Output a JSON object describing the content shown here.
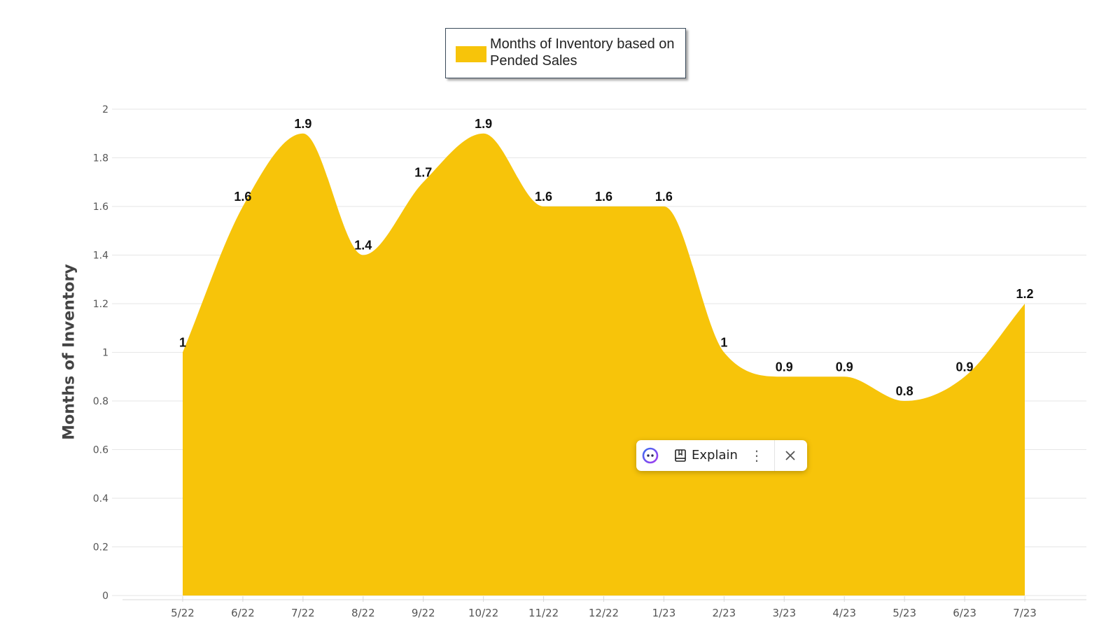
{
  "chart_data": {
    "type": "area",
    "categories": [
      "5/22",
      "6/22",
      "7/22",
      "8/22",
      "9/22",
      "10/22",
      "11/22",
      "12/22",
      "1/23",
      "2/23",
      "3/23",
      "4/23",
      "5/23",
      "6/23",
      "7/23"
    ],
    "series": [
      {
        "name": "Months of Inventory based on Pended Sales",
        "values": [
          1,
          1.6,
          1.9,
          1.4,
          1.7,
          1.9,
          1.6,
          1.6,
          1.6,
          1,
          0.9,
          0.9,
          0.8,
          0.9,
          1.2
        ],
        "data_labels": [
          "1",
          "1.6",
          "1.9",
          "1.4",
          "1.7",
          "1.9",
          "1.6",
          "1.6",
          "1.6",
          "1",
          "0.9",
          "0.9",
          "0.8",
          "0.9",
          "1.2"
        ],
        "color": "#f7c40a"
      }
    ],
    "ylabel": "Months of Inventory",
    "ylim": [
      0,
      2
    ],
    "yticks": [
      "0",
      "0.2",
      "0.4",
      "0.6",
      "0.8",
      "1",
      "1.2",
      "1.4",
      "1.6",
      "1.8",
      "2"
    ],
    "grid": true,
    "legend": "top-center"
  },
  "popup": {
    "logo_icon": "assistant-logo-icon",
    "book_icon": "book-icon",
    "explain_label": "Explain",
    "more_icon": "more-vertical-icon",
    "close_icon": "close-icon"
  }
}
